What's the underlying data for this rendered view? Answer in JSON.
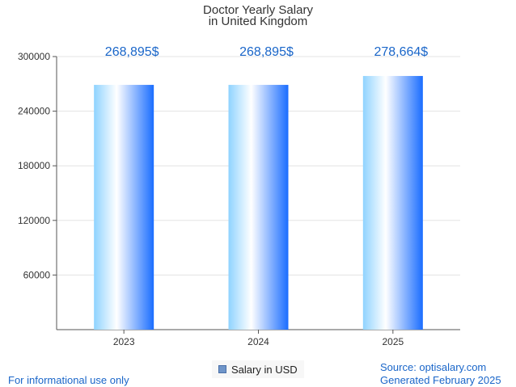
{
  "chart_data": {
    "type": "bar",
    "title": "Doctor Yearly Salary",
    "subtitle": "in United Kingdom",
    "categories": [
      "2023",
      "2024",
      "2025"
    ],
    "series": [
      {
        "name": "Salary in USD",
        "values": [
          268895,
          268895,
          278664
        ]
      }
    ],
    "data_labels": [
      "268,895$",
      "268,895$",
      "278,664$"
    ],
    "y_ticks": [
      "60000",
      "120000",
      "180000",
      "240000",
      "300000"
    ],
    "ylim": [
      0,
      300000
    ],
    "grid": true,
    "legend": "bottom-center",
    "xlabel": "",
    "ylabel": ""
  },
  "footer": {
    "left_note": "For informational use only",
    "source": "Source: optisalary.com",
    "generated": "Generated February 2025"
  },
  "colors": {
    "bar_edge_left": "#8fd3ff",
    "bar_center": "#ffffff",
    "bar_edge_right": "#1a6dff",
    "data_label": "#1a66c9",
    "grid": "#e3e3e3",
    "axis": "#555555"
  }
}
